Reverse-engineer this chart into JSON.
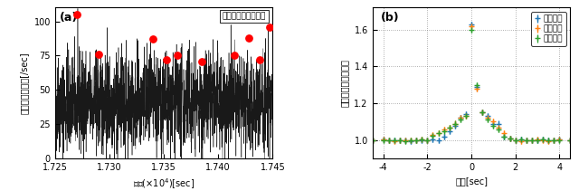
{
  "panel_a": {
    "title": "検出器２＋検出器３",
    "xlabel": "時間(×10⁴)[sec]",
    "ylabel": "カウントレート[/sec]",
    "label": "(a)",
    "xlim": [
      17250,
      17450
    ],
    "ylim": [
      0,
      110
    ],
    "yticks": [
      0,
      25,
      50,
      75,
      100
    ],
    "xticks": [
      17250,
      17300,
      17350,
      17400,
      17450
    ],
    "xtick_labels": [
      "1.725",
      "1.730",
      "1.735",
      "1.740",
      "1.745"
    ],
    "peak_x": [
      17270,
      17290,
      17340,
      17352,
      17362,
      17385,
      17415,
      17428,
      17438,
      17447
    ],
    "peak_y": [
      105,
      76,
      87,
      72,
      75,
      71,
      75,
      88,
      72,
      96
    ]
  },
  "panel_b": {
    "label": "(b)",
    "xlabel": "時間[sec]",
    "ylabel": "規格化された明るさ",
    "xlim": [
      -4.5,
      4.5
    ],
    "ylim": [
      0.9,
      1.72
    ],
    "yticks": [
      1.0,
      1.2,
      1.4,
      1.6
    ],
    "xticks": [
      -4,
      -2,
      0,
      2,
      4
    ],
    "legend": [
      "検出器１",
      "検出器２",
      "検出器３"
    ],
    "colors": [
      "#1f77b4",
      "#ff7f0e",
      "#2ca02c"
    ],
    "time": [
      -4.5,
      -4.0,
      -3.75,
      -3.5,
      -3.25,
      -3.0,
      -2.75,
      -2.5,
      -2.25,
      -2.0,
      -1.75,
      -1.5,
      -1.25,
      -1.0,
      -0.75,
      -0.5,
      -0.25,
      0.0,
      0.25,
      0.5,
      0.75,
      1.0,
      1.25,
      1.5,
      1.75,
      2.0,
      2.25,
      2.5,
      2.75,
      3.0,
      3.25,
      3.5,
      3.75,
      4.0,
      4.5
    ],
    "det1": [
      1.0,
      1.005,
      1.0,
      1.0,
      1.0,
      1.0,
      0.995,
      1.0,
      1.0,
      1.0,
      1.005,
      1.0,
      1.02,
      1.05,
      1.08,
      1.12,
      1.14,
      1.63,
      1.29,
      1.15,
      1.13,
      1.09,
      1.09,
      1.02,
      1.01,
      1.0,
      1.005,
      1.0,
      1.0,
      1.0,
      1.005,
      1.0,
      1.0,
      1.005,
      1.0
    ],
    "det2": [
      1.0,
      1.005,
      1.0,
      0.995,
      1.0,
      1.0,
      1.0,
      1.0,
      1.005,
      1.0,
      1.03,
      1.04,
      1.06,
      1.07,
      1.09,
      1.12,
      1.13,
      1.62,
      1.28,
      1.15,
      1.12,
      1.1,
      1.07,
      1.04,
      1.01,
      1.0,
      0.995,
      1.0,
      1.0,
      1.005,
      1.0,
      0.995,
      1.0,
      1.005,
      1.0
    ],
    "det3": [
      1.0,
      1.0,
      1.0,
      1.0,
      1.0,
      0.995,
      1.0,
      1.0,
      1.005,
      1.0,
      1.025,
      1.04,
      1.05,
      1.07,
      1.09,
      1.11,
      1.13,
      1.6,
      1.3,
      1.15,
      1.11,
      1.08,
      1.06,
      1.02,
      1.01,
      1.0,
      1.005,
      1.0,
      1.0,
      1.0,
      1.005,
      1.0,
      1.0,
      1.0,
      1.0
    ],
    "yerr": 0.015
  },
  "bg_color": "#ffffff"
}
